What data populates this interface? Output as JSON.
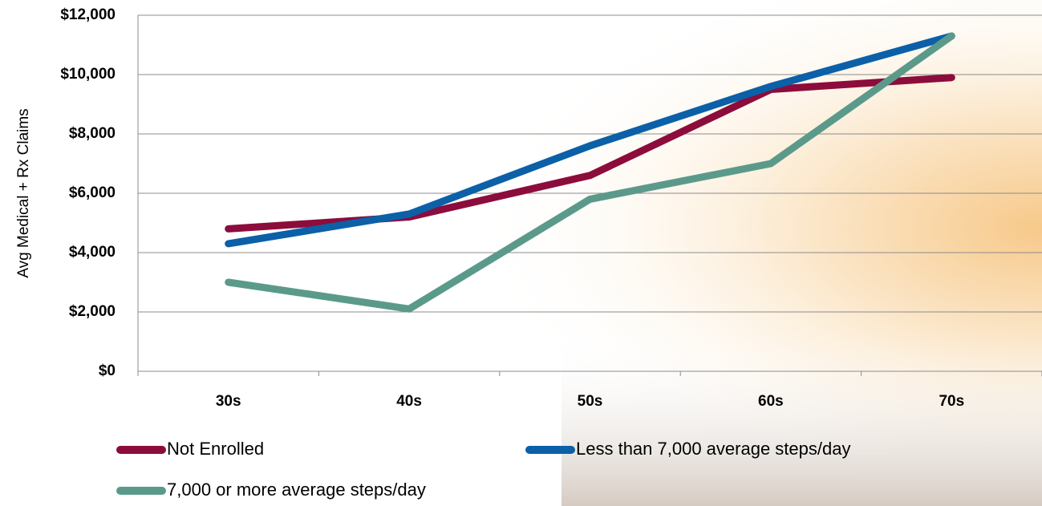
{
  "chart_data": {
    "type": "line",
    "y_label": "Avg Medical + Rx Claims",
    "categories": [
      "30s",
      "40s",
      "50s",
      "60s",
      "70s"
    ],
    "series": [
      {
        "name": "Not Enrolled",
        "color": "#8c0c3c",
        "values": [
          4800,
          5200,
          6600,
          9500,
          9900
        ]
      },
      {
        "name": "Less than 7,000 average steps/day",
        "color": "#0b60a8",
        "values": [
          4300,
          5300,
          7600,
          9600,
          11300
        ]
      },
      {
        "name": "7,000 or more average steps/day",
        "color": "#5b9a8b",
        "values": [
          3000,
          2100,
          5800,
          7000,
          11300
        ]
      }
    ],
    "ylim": [
      0,
      12000
    ],
    "yticks": [
      {
        "value": 0,
        "label": "$0"
      },
      {
        "value": 2000,
        "label": "$2,000"
      },
      {
        "value": 4000,
        "label": "$4,000"
      },
      {
        "value": 6000,
        "label": "$6,000"
      },
      {
        "value": 8000,
        "label": "$8,000"
      },
      {
        "value": 10000,
        "label": "$10,000"
      },
      {
        "value": 12000,
        "label": "$12,000"
      }
    ],
    "grid": true,
    "legend": "bottom"
  }
}
